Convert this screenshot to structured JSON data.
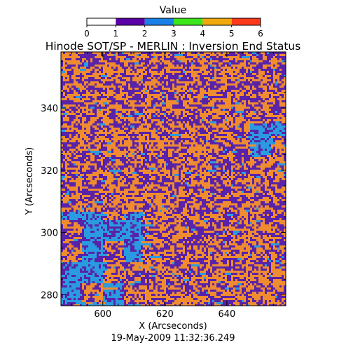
{
  "chart_data": {
    "type": "heatmap",
    "title": "Hinode SOT/SP - MERLIN : Inversion End Status",
    "xlabel": "X (Arcseconds)",
    "ylabel": "Y (Arcseconds)",
    "footer": "19-May-2009 11:32:36.249",
    "xlim": [
      586.5,
      659
    ],
    "ylim": [
      276.5,
      358
    ],
    "x_ticks": [
      600,
      620,
      640
    ],
    "y_ticks": [
      280,
      300,
      320,
      340
    ],
    "colorbar": {
      "label": "Value",
      "range": [
        0,
        6
      ],
      "ticks": [
        0,
        1,
        2,
        3,
        4,
        5,
        6
      ],
      "bins": [
        {
          "from": 0,
          "to": 1,
          "color": "#ffffff"
        },
        {
          "from": 1,
          "to": 2,
          "color": "#5a00a6"
        },
        {
          "from": 2,
          "to": 3,
          "color": "#1a7fe6"
        },
        {
          "from": 3,
          "to": 4,
          "color": "#3ce61a"
        },
        {
          "from": 4,
          "to": 5,
          "color": "#f0a80f"
        },
        {
          "from": 5,
          "to": 6,
          "color": "#ff3a1a"
        }
      ]
    },
    "dominant_values": [
      {
        "value": 1,
        "share": 0.55,
        "color": "#5a22a8"
      },
      {
        "value": 4.5,
        "share": 0.37,
        "color": "#f08c30"
      },
      {
        "value": 2.5,
        "share": 0.08,
        "color": "#2a9be0"
      }
    ],
    "grid": false,
    "legend": "top"
  }
}
